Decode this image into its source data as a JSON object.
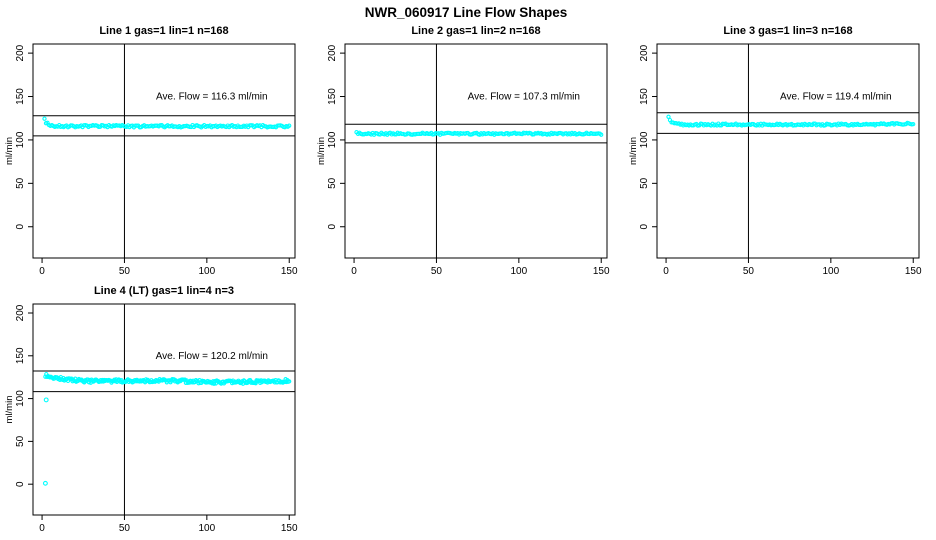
{
  "page_title": "NWR_060917  Line Flow Shapes",
  "colors": {
    "points": "#00FFFF",
    "axis": "#000000",
    "background": "#FFFFFF"
  },
  "chart_data": [
    {
      "type": "scatter",
      "title": "Line 1 gas=1 lin=1 n=168",
      "annotation": "Ave. Flow =  116.3  ml/min",
      "ave_flow_ml_min": 116.3,
      "n": 168,
      "ylabel": "ml/min",
      "xlim": [
        -5.5,
        153.5
      ],
      "ylim": [
        -36,
        210.5
      ],
      "xticks": [
        0,
        50,
        100,
        150
      ],
      "yticks": [
        0,
        50,
        100,
        150,
        200
      ],
      "vline_x": 50,
      "hlines": [
        127.9,
        104.7
      ],
      "band": {
        "n": 168,
        "x_start": 1.5,
        "x_end": 150,
        "y_start": 124,
        "y_settle": 115.8,
        "tau": 1.6,
        "noise": 1.25,
        "wave_amp": 0,
        "end_rise": 0
      },
      "outliers": []
    },
    {
      "type": "scatter",
      "title": "Line 2 gas=1 lin=2 n=168",
      "annotation": "Ave. Flow =  107.3  ml/min",
      "ave_flow_ml_min": 107.3,
      "n": 168,
      "ylabel": "ml/min",
      "xlim": [
        -5.5,
        153.5
      ],
      "ylim": [
        -36,
        210.5
      ],
      "xticks": [
        0,
        50,
        100,
        150
      ],
      "yticks": [
        0,
        50,
        100,
        150,
        200
      ],
      "vline_x": 50,
      "hlines": [
        118.0,
        96.6
      ],
      "band": {
        "n": 168,
        "x_start": 1.5,
        "x_end": 150,
        "y_start": 109,
        "y_settle": 107.1,
        "tau": 1.2,
        "noise": 1.1,
        "wave_amp": 0,
        "end_rise": 0
      },
      "outliers": []
    },
    {
      "type": "scatter",
      "title": "Line 3 gas=1 lin=3 n=168",
      "annotation": "Ave. Flow =  119.4  ml/min",
      "ave_flow_ml_min": 119.4,
      "n": 168,
      "ylabel": "ml/min",
      "xlim": [
        -5.5,
        153.5
      ],
      "ylim": [
        -36,
        210.5
      ],
      "xticks": [
        0,
        50,
        100,
        150
      ],
      "yticks": [
        0,
        50,
        100,
        150,
        200
      ],
      "vline_x": 50,
      "hlines": [
        131.3,
        107.5
      ],
      "band": {
        "n": 168,
        "x_start": 1.5,
        "x_end": 150,
        "y_start": 126.5,
        "y_settle": 117.7,
        "tau": 1.8,
        "noise": 1.15,
        "wave_amp": 0,
        "end_rise": 1.3
      },
      "outliers": []
    },
    {
      "type": "scatter",
      "title": "Line 4 (LT) gas=1 lin=4 n=3",
      "annotation": "Ave. Flow =  120.2  ml/min",
      "ave_flow_ml_min": 120.2,
      "n": 3,
      "ylabel": "ml/min",
      "xlim": [
        -5.5,
        153.5
      ],
      "ylim": [
        -36,
        210.5
      ],
      "xticks": [
        0,
        50,
        100,
        150
      ],
      "yticks": [
        0,
        50,
        100,
        150,
        200
      ],
      "vline_x": 50,
      "hlines": [
        132.2,
        108.2
      ],
      "band": {
        "n": 270,
        "x_start": 2,
        "x_end": 150,
        "y_start": 127,
        "y_settle": 120.0,
        "tau": 16,
        "noise": 2.0,
        "wave_amp": 0.9,
        "end_rise": 0
      },
      "outliers": [
        [
          2.5,
          98.5
        ],
        [
          2,
          1
        ]
      ]
    }
  ]
}
